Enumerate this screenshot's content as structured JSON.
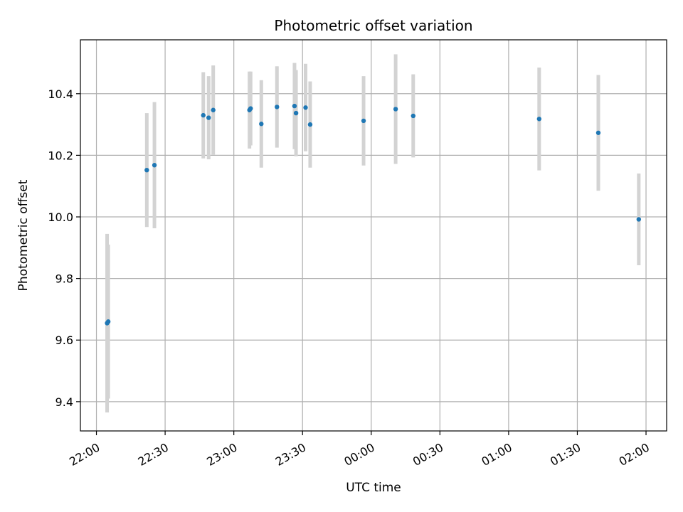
{
  "chart_data": {
    "type": "scatter",
    "title": "Photometric offset variation",
    "xlabel": "UTC time",
    "ylabel": "Photometric offset",
    "x_unit": "UTC hh:mm",
    "xlim": [
      "21:53",
      "02:09"
    ],
    "ylim": [
      9.305,
      10.575
    ],
    "x_ticks": [
      "22:00",
      "22:30",
      "23:00",
      "23:30",
      "00:00",
      "00:30",
      "01:00",
      "01:30",
      "02:00"
    ],
    "y_ticks": [
      9.4,
      9.6,
      9.8,
      10.0,
      10.2,
      10.4
    ],
    "y_tick_labels": [
      "9.4",
      "9.6",
      "9.8",
      "10.0",
      "10.2",
      "10.4"
    ],
    "grid": true,
    "legend": false,
    "points": [
      {
        "x": "22:04:40",
        "y": 9.655,
        "err": 0.29
      },
      {
        "x": "22:05:10",
        "y": 9.66,
        "err": 0.25
      },
      {
        "x": "22:22:00",
        "y": 10.152,
        "err": 0.185
      },
      {
        "x": "22:25:20",
        "y": 10.168,
        "err": 0.205
      },
      {
        "x": "22:46:40",
        "y": 10.33,
        "err": 0.14
      },
      {
        "x": "22:49:00",
        "y": 10.322,
        "err": 0.135
      },
      {
        "x": "22:51:00",
        "y": 10.347,
        "err": 0.145
      },
      {
        "x": "23:06:50",
        "y": 10.347,
        "err": 0.125
      },
      {
        "x": "23:07:20",
        "y": 10.352,
        "err": 0.12
      },
      {
        "x": "23:12:00",
        "y": 10.302,
        "err": 0.142
      },
      {
        "x": "23:18:50",
        "y": 10.357,
        "err": 0.132
      },
      {
        "x": "23:26:30",
        "y": 10.36,
        "err": 0.14
      },
      {
        "x": "23:27:10",
        "y": 10.337,
        "err": 0.14
      },
      {
        "x": "23:31:20",
        "y": 10.355,
        "err": 0.142
      },
      {
        "x": "23:33:20",
        "y": 10.3,
        "err": 0.14
      },
      {
        "x": "23:56:40",
        "y": 10.312,
        "err": 0.145
      },
      {
        "x": "00:10:40",
        "y": 10.35,
        "err": 0.178
      },
      {
        "x": "00:18:20",
        "y": 10.328,
        "err": 0.135
      },
      {
        "x": "01:13:20",
        "y": 10.318,
        "err": 0.167
      },
      {
        "x": "01:39:10",
        "y": 10.273,
        "err": 0.188
      },
      {
        "x": "01:56:50",
        "y": 9.992,
        "err": 0.149
      }
    ],
    "colors": {
      "marker": "#1f77b4",
      "errorbar": "#d3d3d3",
      "grid": "#b0b0b0",
      "frame": "#000000"
    }
  }
}
